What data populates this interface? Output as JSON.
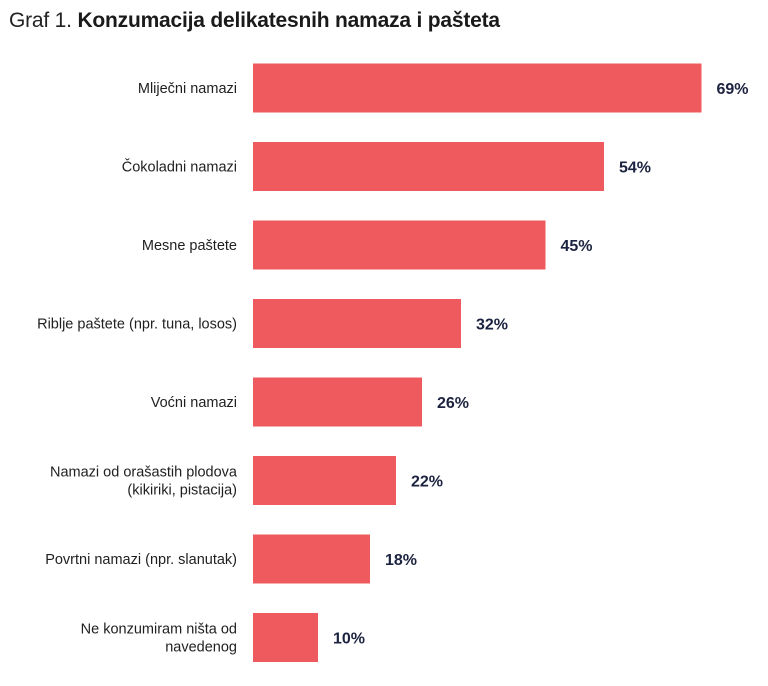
{
  "title": {
    "prefix": "Graf 1.",
    "main": "Konzumacija delikatesnih namaza i pašteta"
  },
  "colors": {
    "bar": "#EF5A5E",
    "value_text": "#1C2340",
    "label_text": "#1F1F1F"
  },
  "chart_data": {
    "type": "bar",
    "orientation": "horizontal",
    "title": "Konzumacija delikatesnih namaza i pašteta",
    "categories": [
      [
        "Mliječni namazi"
      ],
      [
        "Čokoladni namazi"
      ],
      [
        "Mesne paštete"
      ],
      [
        "Riblje paštete (npr. tuna, losos)"
      ],
      [
        "Voćni namazi"
      ],
      [
        "Namazi od orašastih plodova",
        "(kikiriki, pistacija)"
      ],
      [
        "Povrtni namazi (npr. slanutak)"
      ],
      [
        "Ne konzumiram ništa od",
        "navedenog"
      ]
    ],
    "values": [
      69,
      54,
      45,
      32,
      26,
      22,
      18,
      10
    ],
    "value_labels": [
      "69%",
      "54%",
      "45%",
      "32%",
      "26%",
      "22%",
      "18%",
      "10%"
    ],
    "xlim": [
      0,
      100
    ],
    "unit": "%",
    "grid": false,
    "legend": "none"
  }
}
